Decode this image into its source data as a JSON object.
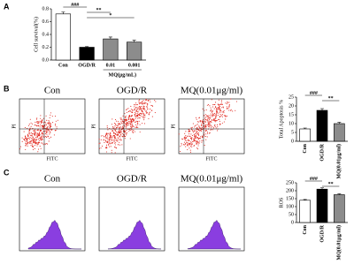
{
  "chart_data": [
    {
      "type": "bar",
      "letter": "A",
      "y_label": "Cell survival(%)",
      "categories": [
        "Con",
        "OGD/R",
        "0.01",
        "0.001"
      ],
      "group_label": "MQ(μg/mL)",
      "values": [
        0.72,
        0.2,
        0.33,
        0.28
      ],
      "errors": [
        0.03,
        0.01,
        0.03,
        0.03
      ],
      "colors": [
        "#ffffff",
        "#000000",
        "#8c8c8c",
        "#8c8c8c"
      ],
      "ylim": [
        0,
        0.8
      ],
      "yticks": [
        {
          "value": 0,
          "label": "0.0"
        },
        0.2,
        0.4,
        0.6,
        0.8
      ],
      "annotations": [
        {
          "text": "###",
          "between": [
            0,
            1
          ]
        },
        {
          "text": "**",
          "between": [
            1,
            2
          ]
        },
        {
          "text": "*",
          "between": [
            1,
            3
          ]
        }
      ]
    },
    {
      "type": "bar",
      "letter": "B",
      "y_label": "Total Apoptosis %",
      "categories": [
        "Con",
        "OGD/R",
        "MQ(0.01μg/ml)"
      ],
      "values": [
        7,
        17.5,
        10
      ],
      "errors": [
        0.5,
        1,
        0.7
      ],
      "colors": [
        "#ffffff",
        "#000000",
        "#8c8c8c"
      ],
      "ylim": [
        0,
        25
      ],
      "yticks": [
        0,
        5,
        10,
        15,
        20,
        25
      ],
      "annotations": [
        {
          "text": "###",
          "between": [
            0,
            1
          ]
        },
        {
          "text": "**",
          "between": [
            1,
            2
          ]
        }
      ]
    },
    {
      "type": "bar",
      "letter": "C",
      "y_label": "ROS",
      "categories": [
        "Con",
        "OGD/R",
        "MQ(0.01μg/ml)"
      ],
      "values": [
        140,
        210,
        175
      ],
      "errors": [
        5,
        8,
        5
      ],
      "colors": [
        "#ffffff",
        "#000000",
        "#8c8c8c"
      ],
      "ylim": [
        0,
        250
      ],
      "yticks": [
        0,
        50,
        100,
        150,
        200,
        250
      ],
      "annotations": [
        {
          "text": "###",
          "between": [
            0,
            1
          ]
        },
        {
          "text": "**",
          "between": [
            1,
            2
          ]
        }
      ]
    }
  ],
  "flow_panels": {
    "B": {
      "titles": [
        "Con",
        "OGD/R",
        "MQ(0.01μg/ml)"
      ],
      "x_label": "FITC",
      "y_label": "PI"
    },
    "C": {
      "titles": [
        "Con",
        "OGD/R",
        "MQ(0.01μg/ml)"
      ]
    }
  }
}
